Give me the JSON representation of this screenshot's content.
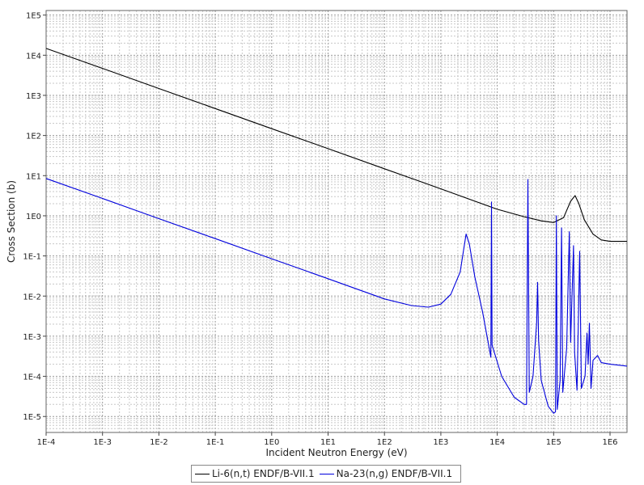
{
  "chart_data": {
    "type": "line",
    "xlabel": "Incident Neutron Energy (eV)",
    "ylabel": "Cross Section (b)",
    "xscale": "log",
    "yscale": "log",
    "xlim": [
      0.0001,
      2000000
    ],
    "ylim": [
      4e-06,
      130000
    ],
    "grid": true,
    "legend_position": "bottom",
    "x_ticks": [
      "1E-4",
      "1E-3",
      "1E-2",
      "1E-1",
      "1E0",
      "1E1",
      "1E2",
      "1E3",
      "1E4",
      "1E5",
      "1E6"
    ],
    "y_ticks": [
      "1E-5",
      "1E-4",
      "1E-3",
      "1E-2",
      "1E-1",
      "1E0",
      "1E1",
      "1E2",
      "1E3",
      "1E4",
      "1E5"
    ],
    "series": [
      {
        "name": "Li-6(n,t) ENDF/B-VII.1",
        "color": "#000000",
        "points": [
          [
            0.0001,
            14800
          ],
          [
            0.001,
            4700
          ],
          [
            0.01,
            1480
          ],
          [
            0.1,
            470
          ],
          [
            1,
            148
          ],
          [
            10,
            47
          ],
          [
            100,
            14.8
          ],
          [
            1000,
            4.7
          ],
          [
            10000,
            1.45
          ],
          [
            30000,
            0.95
          ],
          [
            60000,
            0.75
          ],
          [
            100000,
            0.68
          ],
          [
            150000,
            0.9
          ],
          [
            200000,
            2.3
          ],
          [
            240000,
            3.2
          ],
          [
            280000,
            2.0
          ],
          [
            350000,
            0.8
          ],
          [
            500000,
            0.35
          ],
          [
            700000,
            0.25
          ],
          [
            1000000,
            0.23
          ],
          [
            2000000,
            0.23
          ]
        ]
      },
      {
        "name": "Na-23(n,g) ENDF/B-VII.1",
        "color": "#0000dd",
        "points": [
          [
            0.0001,
            8.5
          ],
          [
            0.001,
            2.7
          ],
          [
            0.01,
            0.85
          ],
          [
            0.1,
            0.27
          ],
          [
            1,
            0.085
          ],
          [
            10,
            0.027
          ],
          [
            100,
            0.0085
          ],
          [
            300,
            0.0058
          ],
          [
            600,
            0.0053
          ],
          [
            1000,
            0.0063
          ],
          [
            1500,
            0.011
          ],
          [
            2200,
            0.04
          ],
          [
            2800,
            0.35
          ],
          [
            3200,
            0.2
          ],
          [
            4000,
            0.03
          ],
          [
            5500,
            0.004
          ],
          [
            7700,
            0.0003
          ],
          [
            7900,
            2.2
          ],
          [
            8100,
            0.0006
          ],
          [
            12000,
            0.0001
          ],
          [
            20000,
            3e-05
          ],
          [
            30000,
            2e-05
          ],
          [
            33000,
            2e-05
          ],
          [
            35000,
            8.0
          ],
          [
            37000,
            4e-05
          ],
          [
            43000,
            0.0001
          ],
          [
            50000,
            0.0022
          ],
          [
            52000,
            0.022
          ],
          [
            54000,
            0.0008
          ],
          [
            60000,
            8e-05
          ],
          [
            80000,
            1.8e-05
          ],
          [
            100000,
            1.2e-05
          ],
          [
            108000,
            1.3e-05
          ],
          [
            112000,
            1.0
          ],
          [
            116000,
            1.5e-05
          ],
          [
            130000,
            8e-05
          ],
          [
            138000,
            0.5
          ],
          [
            145000,
            4e-05
          ],
          [
            170000,
            0.0005
          ],
          [
            190000,
            0.4
          ],
          [
            200000,
            0.0007
          ],
          [
            225000,
            0.18
          ],
          [
            235000,
            0.0004
          ],
          [
            260000,
            4.5e-05
          ],
          [
            290000,
            0.13
          ],
          [
            310000,
            5e-05
          ],
          [
            360000,
            0.0001
          ],
          [
            390000,
            0.0012
          ],
          [
            410000,
            0.0002
          ],
          [
            430000,
            0.0021
          ],
          [
            460000,
            5e-05
          ],
          [
            500000,
            0.00025
          ],
          [
            600000,
            0.00033
          ],
          [
            700000,
            0.00022
          ],
          [
            1000000,
            0.0002
          ],
          [
            2000000,
            0.00018
          ]
        ]
      }
    ]
  }
}
